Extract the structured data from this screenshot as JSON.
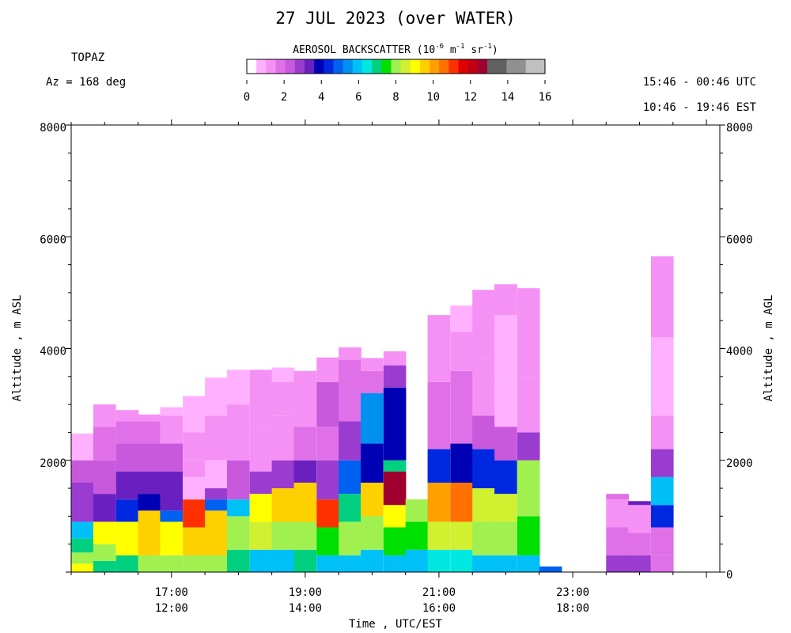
{
  "title": "27 JUL 2023 (over WATER)",
  "instrument": "TOPAZ",
  "azimuth": "Az = 168 deg",
  "time_range_utc": "15:46 - 00:46 UTC",
  "time_range_est": "10:46 - 19:46 EST",
  "colorbar": {
    "title_main": "AEROSOL BACKSCATTER (10",
    "title_exp1": "-6",
    "title_mid1": " m",
    "title_exp2": "-1",
    "title_mid2": " sr",
    "title_exp3": "-1",
    "title_end": ")",
    "ticks": [
      "0",
      "2",
      "4",
      "6",
      "8",
      "10",
      "12",
      "14",
      "16"
    ],
    "colors": [
      "#ffffff",
      "#ffb0ff",
      "#f590f5",
      "#e070e8",
      "#c858dc",
      "#9a3cd0",
      "#6a20c0",
      "#0000b4",
      "#0028e0",
      "#0060f0",
      "#0090f0",
      "#00c0f8",
      "#00e8e0",
      "#00d080",
      "#00e000",
      "#a0f050",
      "#d0f030",
      "#ffff00",
      "#ffd000",
      "#ffa000",
      "#ff7000",
      "#ff3000",
      "#e00000",
      "#c00010",
      "#a00030",
      "#606060",
      "#606060",
      "#909090",
      "#909090",
      "#c0c0c0",
      "#c0c0c0"
    ],
    "range": [
      0,
      16
    ]
  },
  "chart_data": {
    "type": "heatmap",
    "title": "27 JUL 2023 (over WATER)",
    "xlabel": "Time , UTC/EST",
    "ylabel_left": "Altitude , m ASL",
    "ylabel_right": "Altitude , m AGL",
    "xlim_utc_hours": [
      15.5,
      25.2
    ],
    "ylim": [
      0,
      8000
    ],
    "yticks": [
      0,
      2000,
      4000,
      6000,
      8000
    ],
    "yticks_left": [
      "",
      "2000",
      "4000",
      "6000",
      "8000"
    ],
    "yticks_right": [
      "0",
      "2000",
      "4000",
      "6000",
      "8000"
    ],
    "xticks": [
      {
        "utc_hour": 17,
        "utc": "17:00",
        "est": "12:00"
      },
      {
        "utc_hour": 19,
        "utc": "19:00",
        "est": "14:00"
      },
      {
        "utc_hour": 21,
        "utc": "21:00",
        "est": "16:00"
      },
      {
        "utc_hour": 23,
        "utc": "23:00",
        "est": "18:00"
      }
    ],
    "profile_interval_hours": 0.333,
    "profiles": [
      {
        "start_utc_hour": 15.5,
        "top_m": 2480,
        "bands": [
          [
            0,
            150,
            9
          ],
          [
            150,
            350,
            8
          ],
          [
            350,
            600,
            7
          ],
          [
            600,
            900,
            6
          ],
          [
            900,
            1600,
            3
          ],
          [
            1600,
            2000,
            2.2
          ],
          [
            2000,
            2480,
            1
          ]
        ]
      },
      {
        "start_utc_hour": 15.83,
        "top_m": 3000,
        "bands": [
          [
            0,
            200,
            7
          ],
          [
            200,
            500,
            8
          ],
          [
            500,
            900,
            9
          ],
          [
            900,
            1400,
            3.5
          ],
          [
            1400,
            2000,
            2.5
          ],
          [
            2000,
            2600,
            2
          ],
          [
            2600,
            3000,
            1.5
          ]
        ]
      },
      {
        "start_utc_hour": 16.17,
        "top_m": 2900,
        "bands": [
          [
            0,
            300,
            7
          ],
          [
            300,
            900,
            9
          ],
          [
            900,
            1300,
            4.5
          ],
          [
            1300,
            1800,
            3.5
          ],
          [
            1800,
            2300,
            2.3
          ],
          [
            2300,
            2700,
            2
          ],
          [
            2700,
            2900,
            1.5
          ]
        ]
      },
      {
        "start_utc_hour": 16.5,
        "top_m": 2820,
        "bands": [
          [
            0,
            300,
            8
          ],
          [
            300,
            1100,
            9.5
          ],
          [
            1100,
            1400,
            4
          ],
          [
            1400,
            1800,
            3.3
          ],
          [
            1800,
            2300,
            2.3
          ],
          [
            2300,
            2700,
            2
          ],
          [
            2700,
            2820,
            1.5
          ]
        ]
      },
      {
        "start_utc_hour": 16.83,
        "top_m": 2950,
        "bands": [
          [
            0,
            300,
            8
          ],
          [
            300,
            900,
            9
          ],
          [
            900,
            1100,
            5
          ],
          [
            1100,
            1800,
            3.5
          ],
          [
            1800,
            2300,
            2.2
          ],
          [
            2300,
            2800,
            1.5
          ],
          [
            2800,
            2950,
            1
          ]
        ]
      },
      {
        "start_utc_hour": 17.17,
        "top_m": 3150,
        "bands": [
          [
            0,
            300,
            8
          ],
          [
            300,
            800,
            9.5
          ],
          [
            800,
            1300,
            11
          ],
          [
            1300,
            1700,
            1
          ],
          [
            1700,
            2000,
            1.5
          ],
          [
            2000,
            2500,
            1.2
          ],
          [
            2500,
            3150,
            1
          ]
        ]
      },
      {
        "start_utc_hour": 17.5,
        "top_m": 3480,
        "bands": [
          [
            0,
            300,
            8
          ],
          [
            300,
            1100,
            9.5
          ],
          [
            1100,
            1300,
            5
          ],
          [
            1300,
            1500,
            3
          ],
          [
            1500,
            2000,
            1
          ],
          [
            2000,
            2800,
            1.2
          ],
          [
            2800,
            3480,
            1
          ]
        ]
      },
      {
        "start_utc_hour": 17.83,
        "top_m": 3620,
        "bands": [
          [
            0,
            400,
            7
          ],
          [
            400,
            1000,
            8
          ],
          [
            1000,
            1300,
            6
          ],
          [
            1300,
            2000,
            2.2
          ],
          [
            2000,
            3000,
            1.2
          ],
          [
            3000,
            3620,
            0.8
          ]
        ]
      },
      {
        "start_utc_hour": 18.17,
        "top_m": 3620,
        "bands": [
          [
            0,
            400,
            6
          ],
          [
            400,
            900,
            8.5
          ],
          [
            900,
            1400,
            9
          ],
          [
            1400,
            1800,
            3
          ],
          [
            1800,
            2600,
            1.3
          ],
          [
            2600,
            3200,
            1.4
          ],
          [
            3200,
            3620,
            1.2
          ]
        ]
      },
      {
        "start_utc_hour": 18.5,
        "top_m": 3660,
        "bands": [
          [
            0,
            400,
            6
          ],
          [
            400,
            900,
            8
          ],
          [
            900,
            1500,
            9.5
          ],
          [
            1500,
            2000,
            3
          ],
          [
            2000,
            2800,
            1.5
          ],
          [
            2800,
            3400,
            1.2
          ],
          [
            3400,
            3660,
            1
          ]
        ]
      },
      {
        "start_utc_hour": 18.83,
        "top_m": 3600,
        "bands": [
          [
            0,
            400,
            7
          ],
          [
            400,
            900,
            8
          ],
          [
            900,
            1600,
            9.5
          ],
          [
            1600,
            2000,
            3.5
          ],
          [
            2000,
            2600,
            2
          ],
          [
            2600,
            3200,
            1.5
          ],
          [
            3200,
            3600,
            1.2
          ]
        ]
      },
      {
        "start_utc_hour": 19.17,
        "top_m": 3840,
        "bands": [
          [
            0,
            300,
            6
          ],
          [
            300,
            800,
            7.5
          ],
          [
            800,
            1300,
            11
          ],
          [
            1300,
            2000,
            3
          ],
          [
            2000,
            2600,
            2
          ],
          [
            2600,
            3400,
            2.2
          ],
          [
            3400,
            3840,
            1.3
          ]
        ]
      },
      {
        "start_utc_hour": 19.5,
        "top_m": 4020,
        "bands": [
          [
            0,
            300,
            6
          ],
          [
            300,
            900,
            8
          ],
          [
            900,
            1400,
            7
          ],
          [
            1400,
            2000,
            5
          ],
          [
            2000,
            2700,
            2.6
          ],
          [
            2700,
            3200,
            2
          ],
          [
            3200,
            3800,
            1.8
          ],
          [
            3800,
            4020,
            1.3
          ]
        ]
      },
      {
        "start_utc_hour": 19.83,
        "top_m": 3830,
        "bands": [
          [
            0,
            400,
            6
          ],
          [
            400,
            1000,
            8
          ],
          [
            1000,
            1600,
            9.5
          ],
          [
            1600,
            2300,
            4
          ],
          [
            2300,
            3200,
            5.5
          ],
          [
            3200,
            3600,
            2
          ],
          [
            3600,
            3830,
            1.4
          ]
        ]
      },
      {
        "start_utc_hour": 20.17,
        "top_m": 3950,
        "bands": [
          [
            0,
            300,
            6
          ],
          [
            300,
            800,
            7.5
          ],
          [
            800,
            1200,
            9
          ],
          [
            1200,
            1800,
            12.5
          ],
          [
            1800,
            2000,
            7
          ],
          [
            2000,
            3300,
            4
          ],
          [
            3300,
            3700,
            2.6
          ],
          [
            3700,
            3950,
            1.4
          ]
        ]
      },
      {
        "start_utc_hour": 20.5,
        "top_m": 1300,
        "bands": [
          [
            0,
            400,
            6
          ],
          [
            400,
            900,
            7.5
          ],
          [
            900,
            1300,
            8
          ]
        ]
      },
      {
        "start_utc_hour": 20.83,
        "top_m": 4600,
        "bands": [
          [
            0,
            400,
            6.5
          ],
          [
            400,
            900,
            8.5
          ],
          [
            900,
            1600,
            10
          ],
          [
            1600,
            2200,
            4.5
          ],
          [
            2200,
            3400,
            1.8
          ],
          [
            3400,
            4000,
            1.5
          ],
          [
            4000,
            4600,
            1.3
          ]
        ]
      },
      {
        "start_utc_hour": 21.17,
        "top_m": 4770,
        "bands": [
          [
            0,
            400,
            6.5
          ],
          [
            400,
            900,
            8.5
          ],
          [
            900,
            1600,
            10.5
          ],
          [
            1600,
            2300,
            4
          ],
          [
            2300,
            3600,
            1.7
          ],
          [
            3600,
            4300,
            1.3
          ],
          [
            4300,
            4770,
            1
          ]
        ]
      },
      {
        "start_utc_hour": 21.5,
        "top_m": 5050,
        "bands": [
          [
            0,
            300,
            6
          ],
          [
            300,
            900,
            8
          ],
          [
            900,
            1500,
            8.5
          ],
          [
            1500,
            2200,
            4.5
          ],
          [
            2200,
            2800,
            2.5
          ],
          [
            2800,
            3800,
            1.5
          ],
          [
            3800,
            5050,
            1.2
          ]
        ]
      },
      {
        "start_utc_hour": 21.83,
        "top_m": 5150,
        "bands": [
          [
            0,
            300,
            6
          ],
          [
            300,
            900,
            8
          ],
          [
            900,
            1400,
            8.5
          ],
          [
            1400,
            2000,
            4.5
          ],
          [
            2000,
            2600,
            2.5
          ],
          [
            2600,
            3500,
            1
          ],
          [
            3500,
            4600,
            0.9
          ],
          [
            4600,
            5150,
            1.2
          ]
        ]
      },
      {
        "start_utc_hour": 22.17,
        "top_m": 5080,
        "bands": [
          [
            0,
            300,
            6
          ],
          [
            300,
            1000,
            7.5
          ],
          [
            1000,
            2000,
            8
          ],
          [
            2000,
            2500,
            3
          ],
          [
            2500,
            3500,
            1.2
          ],
          [
            3500,
            5080,
            1.2
          ]
        ]
      },
      {
        "start_utc_hour": 22.5,
        "top_m": 100,
        "bands": [
          [
            0,
            100,
            5
          ]
        ]
      },
      {
        "start_utc_hour": 23.5,
        "top_m": 1400,
        "bands": [
          [
            0,
            300,
            3
          ],
          [
            300,
            800,
            2
          ],
          [
            800,
            1300,
            1.5
          ],
          [
            1300,
            1400,
            2
          ]
        ]
      },
      {
        "start_utc_hour": 23.83,
        "top_m": 1270,
        "bands": [
          [
            0,
            300,
            3
          ],
          [
            300,
            700,
            2
          ],
          [
            700,
            1200,
            1.5
          ],
          [
            1200,
            1270,
            3.5
          ]
        ]
      },
      {
        "start_utc_hour": 24.17,
        "top_m": 5650,
        "bands": [
          [
            0,
            300,
            2
          ],
          [
            300,
            800,
            1.8
          ],
          [
            800,
            1200,
            4.5
          ],
          [
            1200,
            1700,
            6
          ],
          [
            1700,
            2200,
            3
          ],
          [
            2200,
            2800,
            1.2
          ],
          [
            2800,
            4200,
            1
          ],
          [
            4200,
            5650,
            1.2
          ]
        ]
      }
    ]
  }
}
